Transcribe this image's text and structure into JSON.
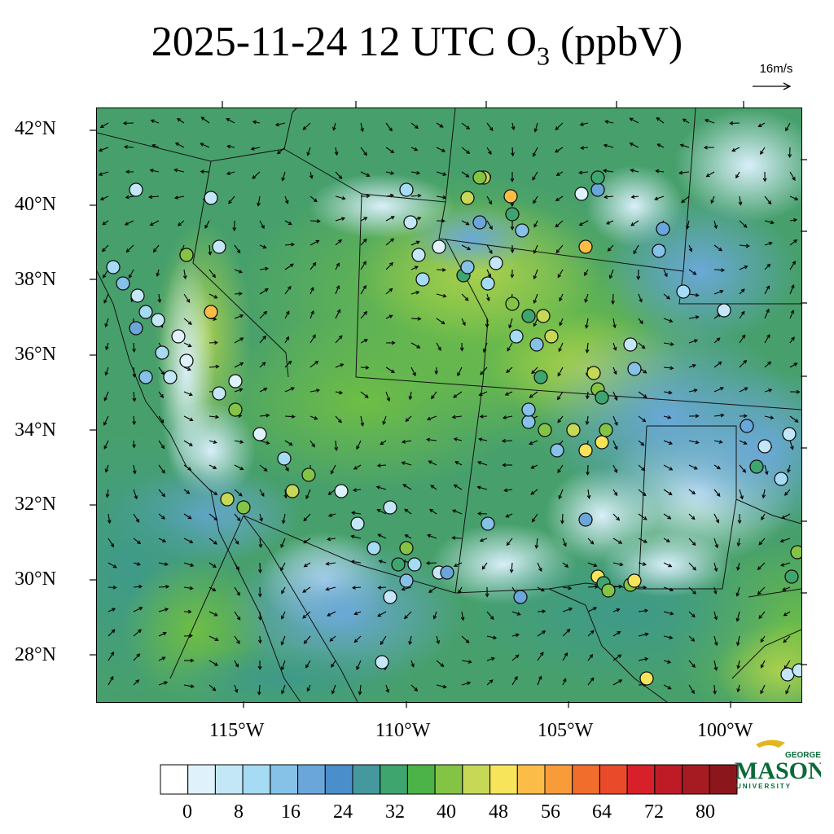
{
  "title": {
    "main": "2025-11-24 12 UTC O",
    "sub": "3",
    "unit": " (ppbV)"
  },
  "reference_vector": {
    "label": "16m/s"
  },
  "map": {
    "variable": "O3 surface concentration with 10 m wind vectors",
    "lat_labels": [
      "42°N",
      "40°N",
      "38°N",
      "36°N",
      "34°N",
      "32°N",
      "30°N",
      "28°N"
    ],
    "lon_labels": [
      "115°W",
      "110°W",
      "105°W",
      "100°W"
    ]
  },
  "colorbar": {
    "levels": [
      0,
      4,
      8,
      12,
      16,
      20,
      24,
      28,
      32,
      36,
      40,
      44,
      48,
      52,
      56,
      60,
      64,
      68,
      72,
      76,
      80
    ],
    "tick_labels": [
      "0",
      "8",
      "16",
      "24",
      "32",
      "40",
      "48",
      "56",
      "64",
      "72",
      "80"
    ],
    "colors": [
      "#ffffff",
      "#dff2fb",
      "#c3e7f7",
      "#a6dbf4",
      "#86c2e8",
      "#6ba6da",
      "#4a8ecb",
      "#45999e",
      "#3fa56f",
      "#4bb348",
      "#84c445",
      "#c7d856",
      "#f7e45b",
      "#fbbd48",
      "#f89c3a",
      "#f06d2c",
      "#e84a2a",
      "#d8202a",
      "#be1b27",
      "#a61b22",
      "#8b161c"
    ]
  },
  "logo": {
    "line1": "GEORGE",
    "line2": "MASON",
    "line3": "UNIVERSITY"
  }
}
